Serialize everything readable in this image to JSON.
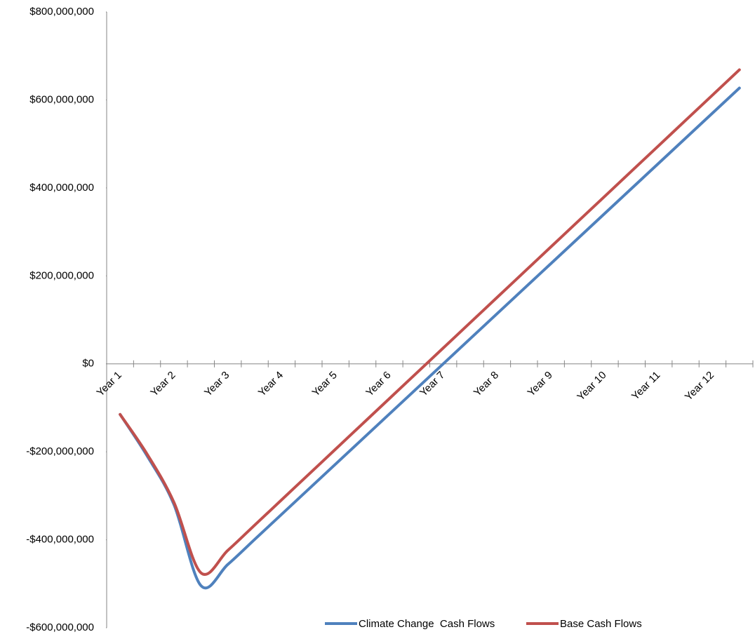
{
  "chart_data": {
    "type": "line",
    "categories": [
      "Year 1",
      null,
      "Year 2",
      null,
      "Year 3",
      null,
      "Year 4",
      null,
      "Year 5",
      null,
      "Year 6",
      null,
      "Year 7",
      null,
      "Year 8",
      null,
      "Year 9",
      null,
      "Year 10",
      null,
      "Year 11",
      null,
      "Year 12",
      null
    ],
    "series": [
      {
        "name": "Climate Change  Cash Flows",
        "color": "#4f81bd",
        "values": [
          -115000000,
          -209000000,
          -320000000,
          -504000000,
          -456000000,
          -399000000,
          -342000000,
          -285000000,
          -228000000,
          -171000000,
          -114000000,
          -57000000,
          0,
          57000000,
          114000000,
          171000000,
          228000000,
          285000000,
          342000000,
          399000000,
          456000000,
          513000000,
          570000000,
          627000000
        ]
      },
      {
        "name": "Base Cash Flows",
        "color": "#c0504d",
        "values": [
          -115000000,
          -205000000,
          -315000000,
          -475000000,
          -424000000,
          -366500000,
          -309000000,
          -251500000,
          -194000000,
          -136500000,
          -79000000,
          -21500000,
          36000000,
          93500000,
          151000000,
          208500000,
          266000000,
          323500000,
          381000000,
          438500000,
          496000000,
          553500000,
          611000000,
          668500000
        ]
      }
    ],
    "ylim": [
      -600000000,
      800000000
    ],
    "yticks": [
      {
        "value": -600000000,
        "label": "-$600,000,000"
      },
      {
        "value": -400000000,
        "label": "-$400,000,000"
      },
      {
        "value": -200000000,
        "label": "-$200,000,000"
      },
      {
        "value": 0,
        "label": "$0"
      },
      {
        "value": 200000000,
        "label": "$200,000,000"
      },
      {
        "value": 400000000,
        "label": "$400,000,000"
      },
      {
        "value": 600000000,
        "label": "$600,000,000"
      },
      {
        "value": 800000000,
        "label": "$800,000,000"
      }
    ],
    "grid": false,
    "legend": "bottom"
  }
}
